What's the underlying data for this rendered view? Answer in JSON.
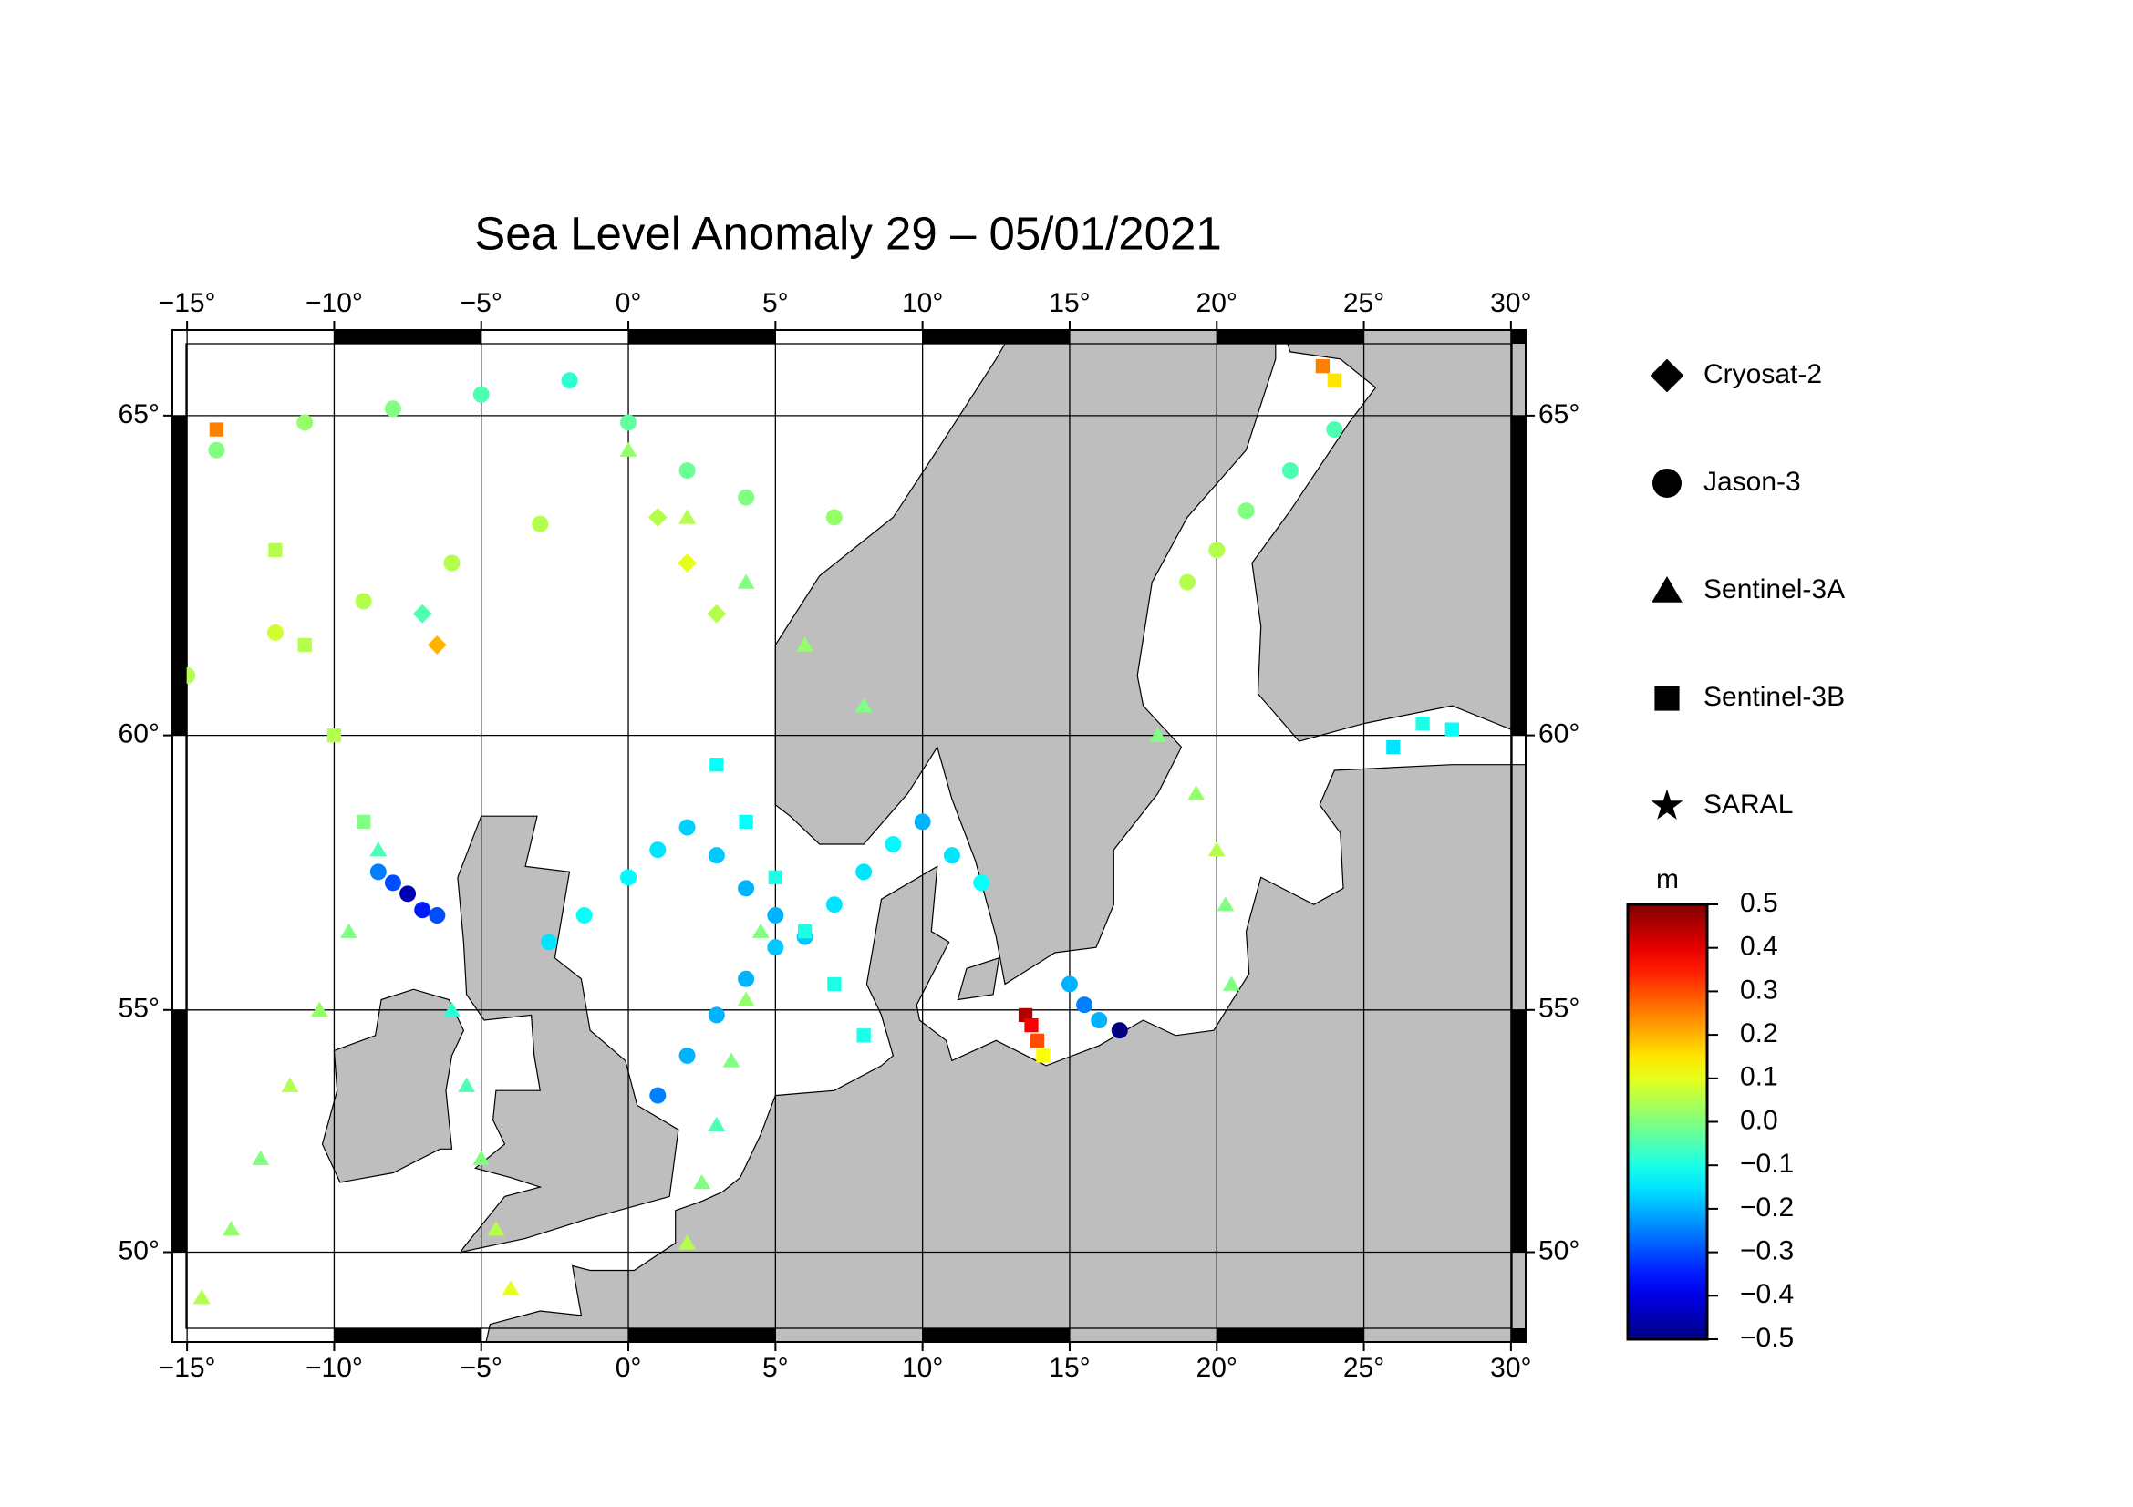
{
  "map": {
    "title": "Sea Level Anomaly 29 – 05/01/2021",
    "xlim": [
      -15.5,
      30.5
    ],
    "ylim": [
      48,
      66.2
    ],
    "projection": "mercator",
    "xticks": [
      {
        "value": -15,
        "label": "−15°"
      },
      {
        "value": -10,
        "label": "−10°"
      },
      {
        "value": -5,
        "label": "−5°"
      },
      {
        "value": 0,
        "label": "0°"
      },
      {
        "value": 5,
        "label": "5°"
      },
      {
        "value": 10,
        "label": "10°"
      },
      {
        "value": 15,
        "label": "15°"
      },
      {
        "value": 20,
        "label": "20°"
      },
      {
        "value": 25,
        "label": "25°"
      },
      {
        "value": 30,
        "label": "30°"
      }
    ],
    "yticks": [
      {
        "value": 50,
        "label": "50°"
      },
      {
        "value": 55,
        "label": "55°"
      },
      {
        "value": 60,
        "label": "60°"
      },
      {
        "value": 65,
        "label": "65°"
      }
    ],
    "grid": true,
    "land_color": "#bebebe",
    "legend": [
      {
        "name": "Cryosat-2",
        "marker": "diamond"
      },
      {
        "name": "Jason-3",
        "marker": "circle"
      },
      {
        "name": "Sentinel-3A",
        "marker": "triangle"
      },
      {
        "name": "Sentinel-3B",
        "marker": "square"
      },
      {
        "name": "SARAL",
        "marker": "star"
      }
    ],
    "colorbar": {
      "unit": "m",
      "colormap": "jet",
      "lim": [
        -0.5,
        0.5
      ],
      "ticks": [
        0.5,
        0.4,
        0.3,
        0.2,
        0.1,
        {
          "value": 0,
          "label": "0.0"
        },
        {
          "value": -0.1,
          "label": "−0.1"
        },
        {
          "value": -0.2,
          "label": "−0.2"
        },
        {
          "value": -0.3,
          "label": "−0.3"
        },
        {
          "value": -0.4,
          "label": "−0.4"
        },
        {
          "value": -0.5,
          "label": "−0.5"
        }
      ]
    },
    "tracks": [
      {
        "mission": "Jason-3",
        "points": [
          [
            1,
            53.3,
            -0.25
          ],
          [
            2,
            54.1,
            -0.2
          ],
          [
            3,
            54.9,
            -0.2
          ],
          [
            4,
            55.6,
            -0.2
          ],
          [
            5,
            56.2,
            -0.18
          ],
          [
            6,
            56.4,
            -0.18
          ],
          [
            7,
            57,
            -0.15
          ],
          [
            8,
            57.6,
            -0.15
          ],
          [
            9,
            58.1,
            -0.13
          ],
          [
            10,
            58.5,
            -0.2
          ],
          [
            11,
            57.9,
            -0.15
          ],
          [
            12,
            57.4,
            -0.12
          ]
        ]
      },
      {
        "mission": "Jason-3",
        "points": [
          [
            -2.7,
            56.3,
            -0.15
          ],
          [
            -1.5,
            56.8,
            -0.12
          ],
          [
            0,
            57.5,
            -0.13
          ],
          [
            1,
            58,
            -0.15
          ],
          [
            2,
            58.4,
            -0.17
          ],
          [
            3,
            57.9,
            -0.18
          ],
          [
            4,
            57.3,
            -0.2
          ],
          [
            5,
            56.8,
            -0.2
          ]
        ]
      },
      {
        "mission": "Jason-3",
        "points": [
          [
            -8.5,
            57.6,
            -0.25
          ],
          [
            -8,
            57.4,
            -0.3
          ],
          [
            -7.5,
            57.2,
            -0.45
          ],
          [
            -7,
            56.9,
            -0.35
          ],
          [
            -6.5,
            56.8,
            -0.3
          ]
        ]
      },
      {
        "mission": "Jason-3",
        "points": [
          [
            -14,
            64.5,
            0
          ],
          [
            -11,
            64.9,
            0.02
          ],
          [
            -8,
            65.1,
            0
          ],
          [
            -5,
            65.3,
            -0.05
          ],
          [
            -2,
            65.5,
            -0.08
          ],
          [
            0,
            64.9,
            -0.03
          ],
          [
            2,
            64.2,
            -0.02
          ],
          [
            4,
            63.8,
            0
          ],
          [
            7,
            63.5,
            0.02
          ]
        ]
      },
      {
        "mission": "Jason-3",
        "points": [
          [
            19,
            62.5,
            0.05
          ],
          [
            20,
            63,
            0.05
          ],
          [
            21,
            63.6,
            0
          ],
          [
            22.5,
            64.2,
            -0.05
          ],
          [
            24,
            64.8,
            -0.05
          ]
        ]
      },
      {
        "mission": "Jason-3",
        "points": [
          [
            15,
            55.5,
            -0.2
          ],
          [
            15.5,
            55.1,
            -0.25
          ],
          [
            16,
            54.8,
            -0.2
          ],
          [
            16.7,
            54.6,
            -0.5
          ]
        ]
      },
      {
        "mission": "Jason-3",
        "points": [
          [
            -15,
            61,
            0.05
          ],
          [
            -12,
            61.7,
            0.08
          ],
          [
            -9,
            62.2,
            0.05
          ],
          [
            -6,
            62.8,
            0.05
          ],
          [
            -3,
            63.4,
            0.05
          ]
        ]
      },
      {
        "mission": "Sentinel-3A",
        "points": [
          [
            -14.5,
            49,
            0.05
          ],
          [
            -13.5,
            50.5,
            0.02
          ],
          [
            -12.5,
            52,
            0
          ],
          [
            -11.5,
            53.5,
            0.05
          ],
          [
            -10.5,
            55,
            0.02
          ],
          [
            -9.5,
            56.5,
            0
          ],
          [
            -8.5,
            58,
            -0.05
          ]
        ]
      },
      {
        "mission": "Sentinel-3A",
        "points": [
          [
            2,
            50.2,
            0.05
          ],
          [
            2.5,
            51.5,
            0
          ],
          [
            3,
            52.7,
            -0.05
          ],
          [
            3.5,
            54,
            0
          ],
          [
            4,
            55.2,
            0.02
          ],
          [
            4.5,
            56.5,
            0
          ]
        ]
      },
      {
        "mission": "Sentinel-3A",
        "points": [
          [
            8,
            60.5,
            0
          ],
          [
            6,
            61.5,
            0.02
          ],
          [
            4,
            62.5,
            0
          ],
          [
            2,
            63.5,
            0.05
          ],
          [
            0,
            64.5,
            0.02
          ]
        ]
      },
      {
        "mission": "Sentinel-3A",
        "points": [
          [
            18,
            60,
            0
          ],
          [
            19.3,
            59,
            0.02
          ],
          [
            20,
            58,
            0.05
          ],
          [
            20.3,
            57,
            0
          ],
          [
            20.5,
            55.5,
            0
          ]
        ]
      },
      {
        "mission": "Sentinel-3A",
        "points": [
          [
            -4,
            49.2,
            0.1
          ],
          [
            -4.5,
            50.5,
            0.05
          ],
          [
            -5,
            52,
            0
          ],
          [
            -5.5,
            53.5,
            -0.05
          ],
          [
            -6,
            55,
            -0.08
          ]
        ]
      },
      {
        "mission": "Sentinel-3B",
        "points": [
          [
            13.5,
            54.9,
            0.45
          ],
          [
            13.7,
            54.7,
            0.38
          ],
          [
            13.9,
            54.4,
            0.3
          ],
          [
            14.1,
            54.1,
            0.12
          ]
        ]
      },
      {
        "mission": "Sentinel-3B",
        "points": [
          [
            -14,
            64.8,
            0.25
          ],
          [
            -12,
            63,
            0.05
          ],
          [
            -11,
            61.5,
            0.05
          ],
          [
            -10,
            60,
            0.05
          ],
          [
            -9,
            58.5,
            0
          ]
        ]
      },
      {
        "mission": "Sentinel-3B",
        "points": [
          [
            3,
            59.5,
            -0.12
          ],
          [
            4,
            58.5,
            -0.12
          ],
          [
            5,
            57.5,
            -0.1
          ],
          [
            6,
            56.5,
            -0.1
          ],
          [
            7,
            55.5,
            -0.1
          ],
          [
            8,
            54.5,
            -0.1
          ]
        ]
      },
      {
        "mission": "Sentinel-3B",
        "points": [
          [
            23.6,
            65.7,
            0.25
          ],
          [
            24,
            65.5,
            0.15
          ]
        ]
      },
      {
        "mission": "Sentinel-3B",
        "points": [
          [
            26,
            59.8,
            -0.15
          ],
          [
            27,
            60.2,
            -0.1
          ],
          [
            28,
            60.1,
            -0.12
          ]
        ]
      },
      {
        "mission": "Cryosat-2",
        "points": [
          [
            1,
            63.5,
            0.05
          ],
          [
            2,
            62.8,
            0.1
          ],
          [
            3,
            62,
            0.05
          ],
          [
            -7,
            62,
            -0.05
          ],
          [
            -6.5,
            61.5,
            0.2
          ]
        ]
      }
    ]
  }
}
